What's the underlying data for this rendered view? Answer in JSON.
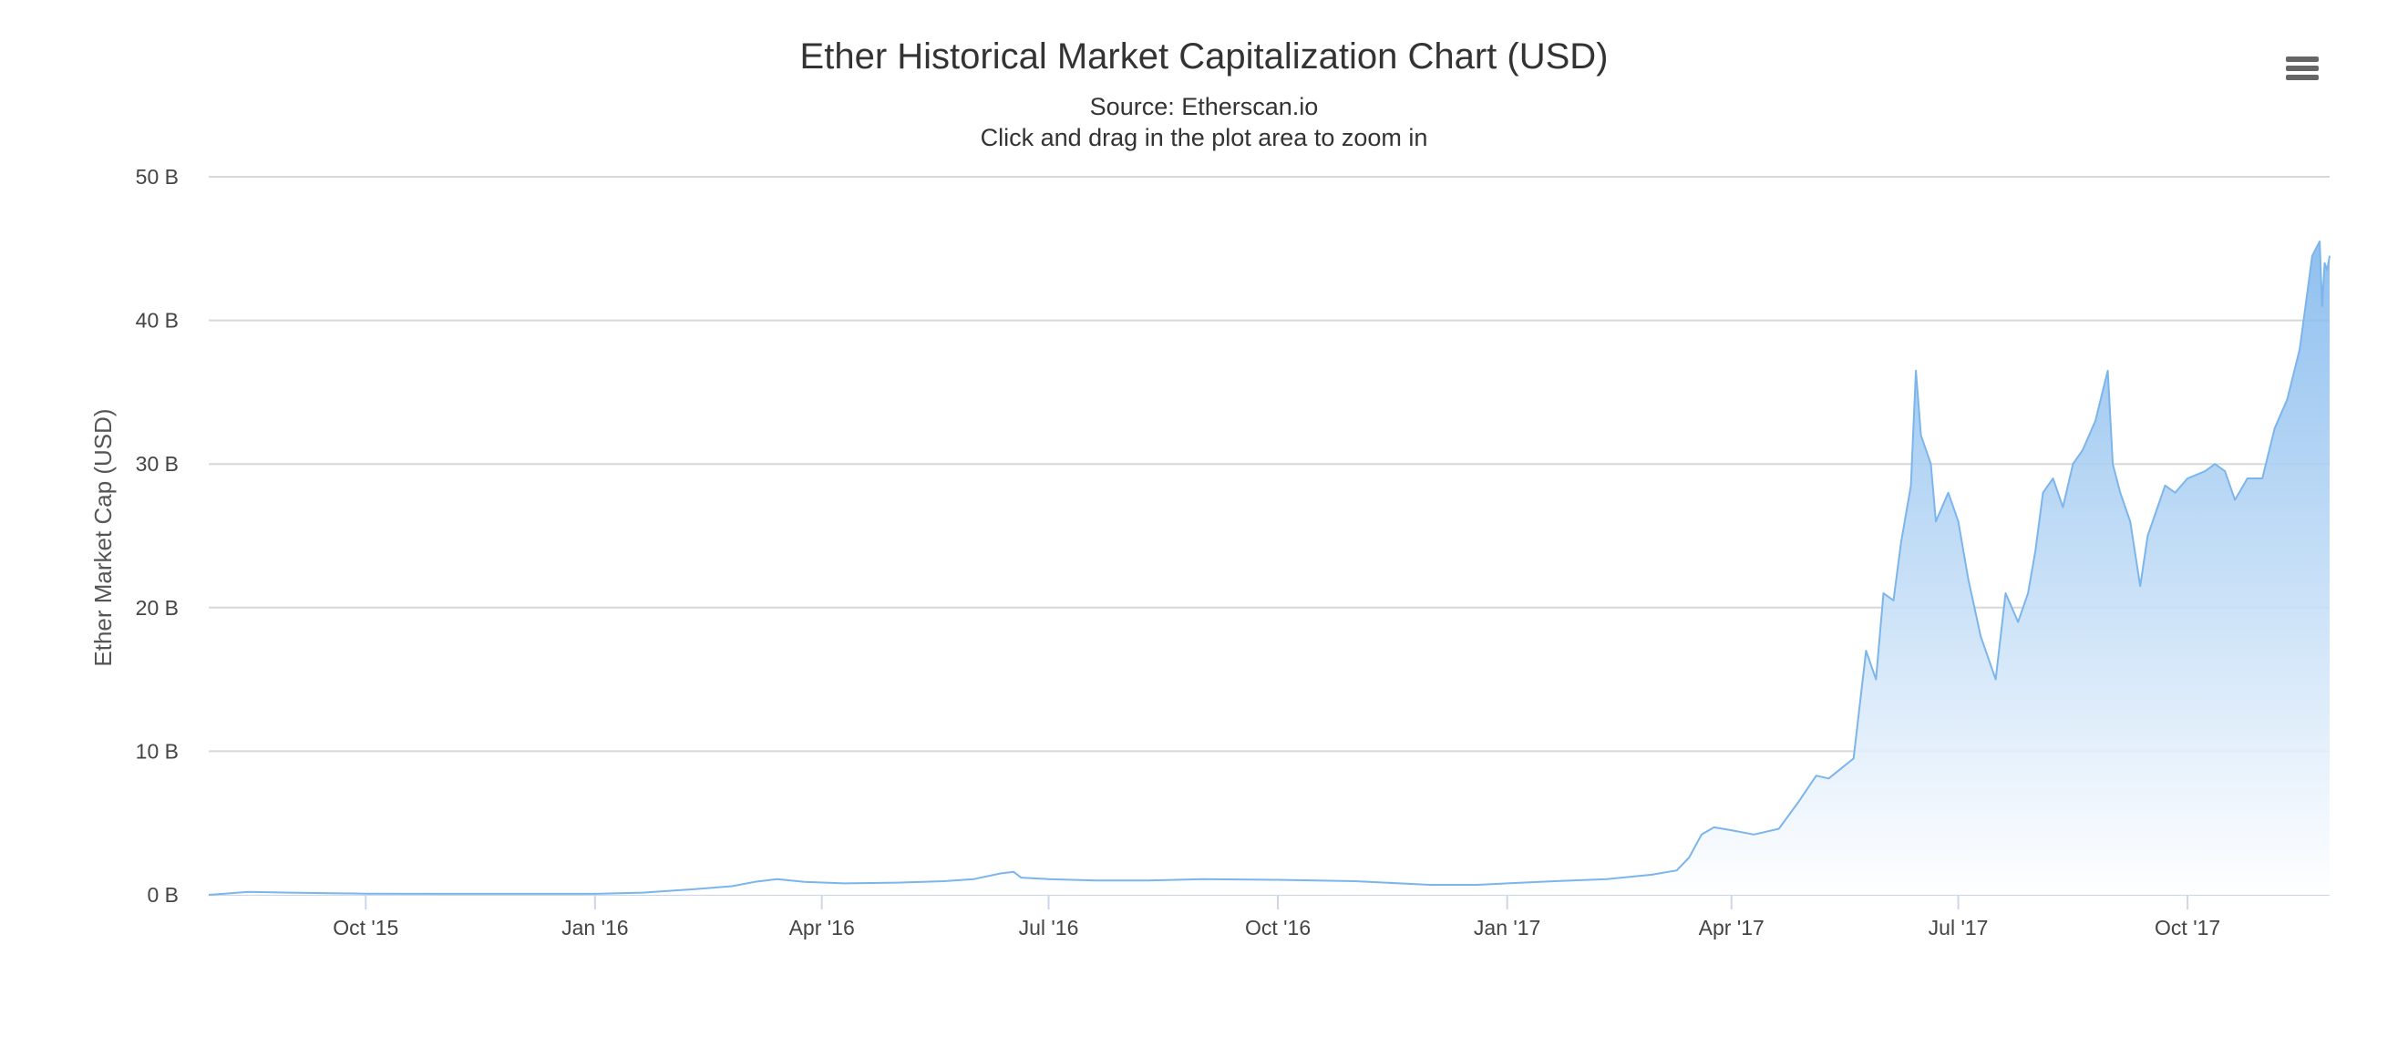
{
  "header": {
    "title": "Ether Historical Market Capitalization Chart (USD)",
    "source": "Source: Etherscan.io",
    "hint": "Click and drag in the plot area to zoom in"
  },
  "menu": {
    "icon": "hamburger-menu-icon"
  },
  "chart_data": {
    "type": "area",
    "title": "Ether Historical Market Capitalization Chart (USD)",
    "subtitle": "Source: Etherscan.io",
    "ylabel": "Ether Market Cap (USD)",
    "xlabel": "",
    "ylim": [
      0,
      50
    ],
    "xlim": [
      "2015-07-30",
      "2017-11-27"
    ],
    "yticks": [
      {
        "value": 0,
        "label": "0 B"
      },
      {
        "value": 10,
        "label": "10 B"
      },
      {
        "value": 20,
        "label": "20 B"
      },
      {
        "value": 30,
        "label": "30 B"
      },
      {
        "value": 40,
        "label": "40 B"
      },
      {
        "value": 50,
        "label": "50 B"
      }
    ],
    "xticks": [
      {
        "date": "2015-10-01",
        "label": "Oct '15"
      },
      {
        "date": "2016-01-01",
        "label": "Jan '16"
      },
      {
        "date": "2016-04-01",
        "label": "Apr '16"
      },
      {
        "date": "2016-07-01",
        "label": "Jul '16"
      },
      {
        "date": "2016-10-01",
        "label": "Oct '16"
      },
      {
        "date": "2017-01-01",
        "label": "Jan '17"
      },
      {
        "date": "2017-04-01",
        "label": "Apr '17"
      },
      {
        "date": "2017-07-01",
        "label": "Jul '17"
      },
      {
        "date": "2017-10-01",
        "label": "Oct '17"
      }
    ],
    "grid": true,
    "legend": "none",
    "colors": {
      "line": "#7cb5ec",
      "fill_top": "#7cb5ec",
      "fill_bottom": "#ffffff",
      "grid": "#d8d8d8",
      "axis": "#ccd6eb"
    },
    "series": [
      {
        "x": [
          "2015-07-30",
          "2015-08-15",
          "2015-09-01",
          "2015-10-01",
          "2015-11-01",
          "2015-12-01",
          "2016-01-01",
          "2016-01-20",
          "2016-02-10",
          "2016-02-25",
          "2016-03-05",
          "2016-03-14",
          "2016-03-25",
          "2016-04-10",
          "2016-05-01",
          "2016-05-20",
          "2016-06-01",
          "2016-06-12",
          "2016-06-17",
          "2016-06-20",
          "2016-07-01",
          "2016-07-20",
          "2016-08-10",
          "2016-09-01",
          "2016-10-01",
          "2016-11-01",
          "2016-12-01",
          "2016-12-20",
          "2017-01-01",
          "2017-01-20",
          "2017-02-10",
          "2017-02-28",
          "2017-03-10",
          "2017-03-15",
          "2017-03-20",
          "2017-03-25",
          "2017-04-01",
          "2017-04-10",
          "2017-04-20",
          "2017-04-28",
          "2017-05-05",
          "2017-05-10",
          "2017-05-20",
          "2017-05-25",
          "2017-05-29",
          "2017-06-01",
          "2017-06-05",
          "2017-06-08",
          "2017-06-12",
          "2017-06-14",
          "2017-06-16",
          "2017-06-20",
          "2017-06-22",
          "2017-06-27",
          "2017-07-01",
          "2017-07-05",
          "2017-07-10",
          "2017-07-16",
          "2017-07-20",
          "2017-07-25",
          "2017-07-29",
          "2017-08-01",
          "2017-08-04",
          "2017-08-08",
          "2017-08-12",
          "2017-08-16",
          "2017-08-20",
          "2017-08-25",
          "2017-08-30",
          "2017-09-01",
          "2017-09-04",
          "2017-09-08",
          "2017-09-12",
          "2017-09-15",
          "2017-09-19",
          "2017-09-22",
          "2017-09-26",
          "2017-10-01",
          "2017-10-08",
          "2017-10-12",
          "2017-10-16",
          "2017-10-20",
          "2017-10-25",
          "2017-10-31",
          "2017-11-05",
          "2017-11-10",
          "2017-11-15",
          "2017-11-20",
          "2017-11-23",
          "2017-11-24",
          "2017-11-25",
          "2017-11-26",
          "2017-11-27"
        ],
        "y": [
          0.0,
          0.2,
          0.15,
          0.08,
          0.07,
          0.07,
          0.07,
          0.15,
          0.4,
          0.6,
          0.9,
          1.1,
          0.9,
          0.8,
          0.85,
          0.95,
          1.1,
          1.5,
          1.6,
          1.2,
          1.1,
          1.0,
          1.0,
          1.1,
          1.05,
          0.95,
          0.7,
          0.7,
          0.8,
          0.95,
          1.1,
          1.4,
          1.7,
          2.6,
          4.2,
          4.7,
          4.5,
          4.2,
          4.6,
          6.5,
          8.3,
          8.1,
          9.5,
          17.0,
          15.0,
          21.0,
          20.5,
          24.5,
          28.5,
          36.5,
          32.0,
          30.0,
          26.0,
          28.0,
          26.0,
          22.0,
          18.0,
          15.0,
          21.0,
          19.0,
          21.0,
          24.0,
          28.0,
          29.0,
          27.0,
          30.0,
          31.0,
          33.0,
          36.5,
          30.0,
          28.0,
          26.0,
          21.5,
          25.0,
          27.0,
          28.5,
          28.0,
          29.0,
          29.5,
          30.0,
          29.5,
          27.5,
          29.0,
          29.0,
          32.5,
          34.5,
          38.0,
          44.5,
          45.5,
          41.0,
          44.0,
          43.5,
          44.5
        ]
      }
    ]
  }
}
